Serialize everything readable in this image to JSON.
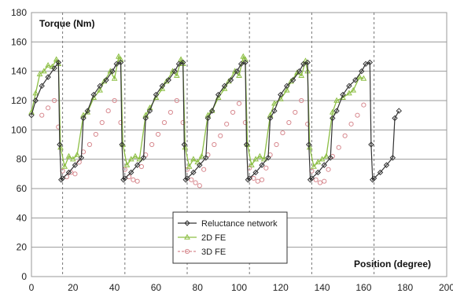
{
  "chart_data": {
    "type": "line",
    "ylabel": "Torque (Nm)",
    "xlabel": "Position (degree)",
    "xlim": [
      0,
      200
    ],
    "ylim": [
      0,
      180
    ],
    "xticks": [
      "0",
      "20",
      "40",
      "60",
      "80",
      "100",
      "120",
      "140",
      "160",
      "180",
      "200"
    ],
    "yticks": [
      "0",
      "20",
      "40",
      "60",
      "80",
      "100",
      "120",
      "140",
      "160",
      "180"
    ],
    "grid": "horizontal solid, vertical dashed at 15,45,75,105,135,165",
    "legend_position": "bottom-center",
    "series": [
      {
        "name": "Reluctance network",
        "color": "#333333",
        "marker": "diamond",
        "x": [
          0,
          2,
          5,
          8,
          11,
          13,
          13.6,
          14.3,
          15,
          18,
          21,
          24,
          25,
          27,
          30,
          33,
          36,
          39,
          41,
          43,
          43.6,
          44.3,
          45,
          48,
          51,
          54,
          55,
          57,
          60,
          63,
          66,
          69,
          71,
          73,
          73.6,
          74.3,
          75,
          78,
          81,
          84,
          85,
          87,
          90,
          93,
          96,
          99,
          101,
          103,
          103.6,
          104.3,
          105,
          108,
          111,
          114,
          115,
          117,
          120,
          123,
          126,
          129,
          131,
          133,
          133.6,
          134.3,
          135,
          138,
          141,
          144,
          145,
          147,
          150,
          153,
          156,
          159,
          161,
          163,
          163.6,
          164.3,
          165,
          168,
          171,
          174,
          175,
          177
        ],
        "y": [
          110,
          120,
          130,
          136,
          142,
          146,
          90,
          66,
          67,
          71,
          76,
          81,
          108,
          113,
          124,
          130,
          134,
          140,
          145,
          146,
          90,
          66,
          67,
          71,
          76,
          81,
          108,
          113,
          124,
          130,
          134,
          140,
          145,
          146,
          90,
          66,
          67,
          71,
          76,
          81,
          108,
          113,
          124,
          130,
          134,
          140,
          145,
          146,
          90,
          66,
          67,
          71,
          76,
          81,
          108,
          113,
          124,
          130,
          134,
          140,
          145,
          146,
          90,
          66,
          67,
          71,
          76,
          81,
          108,
          113,
          124,
          130,
          134,
          140,
          145,
          146,
          90,
          66,
          67,
          71,
          76,
          81,
          108,
          113
        ]
      },
      {
        "name": "2D FE",
        "color": "#8dbf45",
        "marker": "triangle",
        "x": [
          0,
          2,
          4,
          6,
          8,
          10,
          12,
          13,
          14,
          16,
          18,
          20,
          22,
          25,
          27,
          30,
          33,
          35,
          38,
          40,
          42,
          43,
          44,
          46,
          48,
          50,
          52,
          55,
          57,
          60,
          63,
          65,
          68,
          70,
          72,
          73,
          74,
          76,
          78,
          80,
          82,
          85,
          87,
          90,
          93,
          95,
          98,
          100,
          102,
          103,
          104,
          106,
          108,
          110,
          112,
          115,
          117,
          120,
          123,
          125,
          128,
          130,
          132,
          133,
          134,
          136,
          138,
          140,
          142,
          145,
          147,
          150,
          153,
          155,
          158,
          160
        ],
        "y": [
          112,
          125,
          138,
          140,
          144,
          143,
          148,
          145,
          88,
          75,
          82,
          80,
          83,
          110,
          112,
          122,
          127,
          133,
          140,
          135,
          150,
          148,
          90,
          76,
          80,
          82,
          80,
          110,
          115,
          122,
          128,
          133,
          140,
          137,
          148,
          145,
          88,
          75,
          80,
          78,
          82,
          110,
          113,
          122,
          128,
          133,
          140,
          137,
          150,
          148,
          90,
          76,
          80,
          82,
          80,
          110,
          118,
          121,
          127,
          133,
          139,
          137,
          147,
          140,
          88,
          75,
          78,
          80,
          82,
          112,
          120,
          122,
          125,
          127,
          136,
          135
        ]
      },
      {
        "name": "3D FE",
        "color": "#d88a90",
        "marker": "circle",
        "x": [
          5,
          8,
          11,
          13,
          15,
          17,
          19,
          21,
          23,
          25,
          28,
          31,
          34,
          37,
          40,
          43,
          45,
          47,
          49,
          51,
          53,
          55,
          58,
          61,
          64,
          67,
          70,
          73,
          75,
          77,
          79,
          81,
          83,
          85,
          88,
          91,
          94,
          97,
          100,
          103,
          105,
          107,
          109,
          111,
          113,
          115,
          118,
          121,
          124,
          127,
          130,
          133,
          135,
          137,
          139,
          141,
          143,
          145,
          148,
          151,
          154,
          157,
          160
        ],
        "y": [
          110,
          115,
          120,
          102,
          72,
          68,
          71,
          70,
          78,
          85,
          90,
          97,
          105,
          113,
          120,
          105,
          73,
          68,
          66,
          65,
          75,
          83,
          90,
          97,
          105,
          112,
          120,
          105,
          73,
          66,
          64,
          62,
          73,
          83,
          90,
          96,
          104,
          112,
          118,
          105,
          74,
          67,
          65,
          66,
          74,
          83,
          90,
          98,
          105,
          112,
          120,
          104,
          72,
          66,
          64,
          65,
          73,
          82,
          88,
          96,
          104,
          110,
          117
        ]
      }
    ]
  }
}
